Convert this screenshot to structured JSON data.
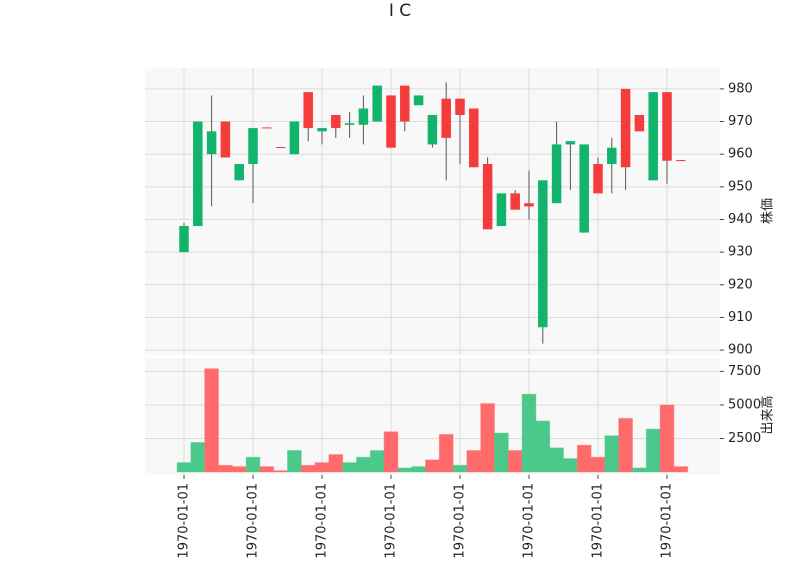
{
  "chart_data": {
    "type": "candlestick",
    "title": "I C",
    "categories": [
      "1970-01-01",
      null,
      null,
      null,
      null,
      "1970-01-01",
      null,
      null,
      null,
      null,
      "1970-01-01",
      null,
      null,
      null,
      null,
      "1970-01-01",
      null,
      null,
      null,
      null,
      "1970-01-01",
      null,
      null,
      null,
      null,
      "1970-01-01",
      null,
      null,
      null,
      null,
      "1970-01-01",
      null,
      null,
      null,
      null,
      "1970-01-01",
      null
    ],
    "open": [
      930,
      938,
      960,
      970,
      952,
      957,
      968.2,
      962.2,
      960,
      979,
      967,
      972,
      969,
      969,
      970,
      978,
      981,
      975,
      963,
      977,
      977,
      974,
      957,
      938,
      948,
      945,
      907,
      945,
      963,
      936,
      957,
      957,
      980,
      972,
      952,
      979,
      958.2
    ],
    "high": [
      939,
      970,
      978,
      970,
      957,
      968,
      968.2,
      962.2,
      970,
      979,
      968,
      972,
      973,
      978,
      981,
      978,
      981,
      978,
      972,
      982,
      977,
      974,
      959,
      948,
      949,
      955,
      952,
      970,
      964,
      963,
      959,
      965,
      980,
      972,
      979,
      979,
      958.2
    ],
    "low": [
      930,
      938,
      944,
      959,
      952,
      945,
      968,
      962,
      960,
      964,
      963,
      965,
      965,
      963,
      970,
      962,
      967,
      975,
      962,
      952,
      957,
      956,
      937,
      938,
      943,
      940,
      902,
      945,
      949,
      936,
      948,
      948,
      949,
      967,
      952,
      951,
      958
    ],
    "close": [
      938,
      970,
      967,
      959,
      957,
      968,
      968,
      962,
      970,
      968,
      968,
      968,
      969.5,
      974,
      981,
      962,
      970,
      978,
      972,
      965,
      972,
      956,
      937,
      948,
      943,
      944,
      952,
      963,
      964,
      963,
      948,
      962,
      956,
      967,
      979,
      958,
      958
    ],
    "up_color": "#12b46c",
    "down_color": "#f43c3c",
    "ylabel": "株価",
    "ylim": [
      898.5,
      986.4
    ],
    "yticks": [
      900,
      910,
      920,
      930,
      940,
      950,
      960,
      970,
      980
    ],
    "volume": [
      700,
      2200,
      7700,
      500,
      400,
      1100,
      400,
      100,
      1600,
      500,
      700,
      1300,
      700,
      1100,
      1600,
      3000,
      300,
      400,
      900,
      2800,
      500,
      1600,
      5100,
      2900,
      1600,
      5800,
      3800,
      1800,
      1000,
      2000,
      1100,
      2700,
      4000,
      300,
      3200,
      5000,
      400
    ],
    "volume_colors": [
      "#4bc98a",
      "#4bc98a",
      "#ff6b6b",
      "#ff6b6b",
      "#ff6b6b",
      "#4bc98a",
      "#ff6b6b",
      "#ff6b6b",
      "#4bc98a",
      "#ff6b6b",
      "#ff6b6b",
      "#ff6b6b",
      "#4bc98a",
      "#4bc98a",
      "#4bc98a",
      "#ff6b6b",
      "#4bc98a",
      "#4bc98a",
      "#ff6b6b",
      "#ff6b6b",
      "#4bc98a",
      "#ff6b6b",
      "#ff6b6b",
      "#4bc98a",
      "#ff6b6b",
      "#4bc98a",
      "#4bc98a",
      "#4bc98a",
      "#4bc98a",
      "#ff6b6b",
      "#ff6b6b",
      "#4bc98a",
      "#ff6b6b",
      "#4bc98a",
      "#4bc98a",
      "#ff6b6b",
      "#ff6b6b"
    ],
    "volume_label": "出来高",
    "volume_ylim": [
      0,
      8500
    ],
    "volume_yticks": [
      2500,
      5000,
      7500
    ],
    "grid": true
  }
}
